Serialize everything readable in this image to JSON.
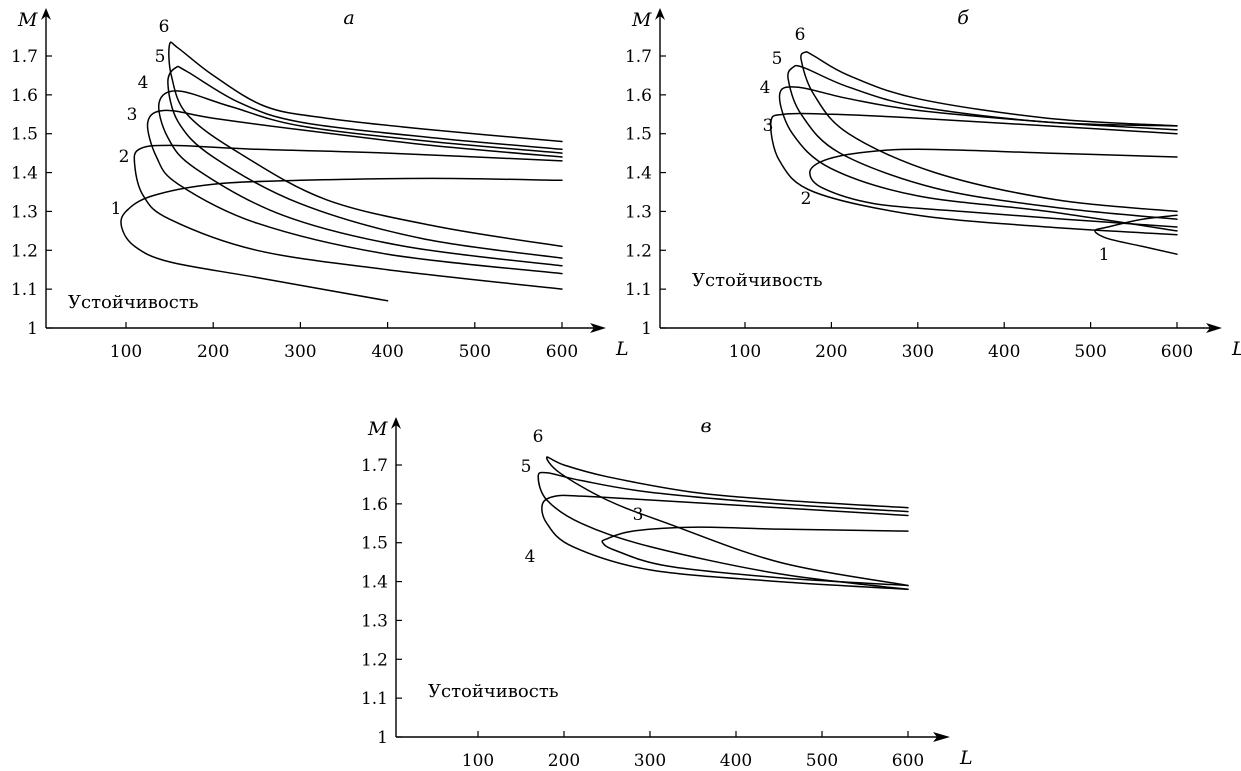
{
  "chart_data": [
    {
      "type": "line",
      "panel": "а",
      "xlabel": "L",
      "ylabel": "M",
      "xlim": [
        0,
        650
      ],
      "ylim": [
        1.0,
        1.8
      ],
      "xticks": [
        "100",
        "200",
        "300",
        "400",
        "500",
        "600"
      ],
      "yticks": [
        "1",
        "1.1",
        "1.2",
        "1.3",
        "1.4",
        "1.5",
        "1.6",
        "1.7"
      ],
      "region_label": "Устойчивость",
      "series": [
        {
          "name": "1",
          "upper": [
            [
              600,
              1.38
            ],
            [
              450,
              1.385
            ],
            [
              300,
              1.38
            ],
            [
              200,
              1.37
            ],
            [
              130,
              1.34
            ],
            [
              100,
              1.3
            ],
            [
              95,
              1.26
            ]
          ],
          "lower": [
            [
              95,
              1.26
            ],
            [
              110,
              1.21
            ],
            [
              150,
              1.17
            ],
            [
              250,
              1.13
            ],
            [
              400,
              1.07
            ]
          ]
        },
        {
          "name": "2",
          "upper": [
            [
              600,
              1.43
            ],
            [
              400,
              1.45
            ],
            [
              250,
              1.46
            ],
            [
              150,
              1.47
            ],
            [
              115,
              1.46
            ],
            [
              110,
              1.42
            ]
          ],
          "lower": [
            [
              110,
              1.42
            ],
            [
              120,
              1.34
            ],
            [
              150,
              1.28
            ],
            [
              250,
              1.2
            ],
            [
              400,
              1.15
            ],
            [
              600,
              1.1
            ]
          ]
        },
        {
          "name": "3",
          "upper": [
            [
              600,
              1.44
            ],
            [
              450,
              1.47
            ],
            [
              300,
              1.51
            ],
            [
              200,
              1.54
            ],
            [
              145,
              1.56
            ],
            [
              125,
              1.53
            ]
          ],
          "lower": [
            [
              125,
              1.53
            ],
            [
              135,
              1.44
            ],
            [
              160,
              1.37
            ],
            [
              250,
              1.27
            ],
            [
              400,
              1.19
            ],
            [
              600,
              1.14
            ]
          ]
        },
        {
          "name": "4",
          "upper": [
            [
              600,
              1.45
            ],
            [
              450,
              1.48
            ],
            [
              300,
              1.52
            ],
            [
              220,
              1.57
            ],
            [
              160,
              1.61
            ],
            [
              138,
              1.58
            ]
          ],
          "lower": [
            [
              138,
              1.58
            ],
            [
              148,
              1.49
            ],
            [
              180,
              1.41
            ],
            [
              280,
              1.29
            ],
            [
              420,
              1.21
            ],
            [
              600,
              1.16
            ]
          ]
        },
        {
          "name": "5",
          "upper": [
            [
              600,
              1.46
            ],
            [
              450,
              1.49
            ],
            [
              300,
              1.53
            ],
            [
              230,
              1.58
            ],
            [
              170,
              1.66
            ],
            [
              157,
              1.67
            ],
            [
              148,
              1.63
            ]
          ],
          "lower": [
            [
              148,
              1.63
            ],
            [
              160,
              1.53
            ],
            [
              200,
              1.44
            ],
            [
              300,
              1.32
            ],
            [
              440,
              1.23
            ],
            [
              600,
              1.18
            ]
          ]
        },
        {
          "name": "6",
          "upper": [
            [
              600,
              1.48
            ],
            [
              450,
              1.51
            ],
            [
              330,
              1.54
            ],
            [
              260,
              1.57
            ],
            [
              200,
              1.65
            ],
            [
              160,
              1.72
            ],
            [
              150,
              1.73
            ]
          ],
          "lower": [
            [
              150,
              1.73
            ],
            [
              152,
              1.65
            ],
            [
              170,
              1.55
            ],
            [
              230,
              1.45
            ],
            [
              330,
              1.33
            ],
            [
              460,
              1.26
            ],
            [
              600,
              1.21
            ]
          ]
        }
      ]
    },
    {
      "type": "line",
      "panel": "б",
      "xlabel": "L",
      "ylabel": "M",
      "xlim": [
        0,
        650
      ],
      "ylim": [
        1.0,
        1.8
      ],
      "xticks": [
        "100",
        "200",
        "300",
        "400",
        "500",
        "600"
      ],
      "yticks": [
        "1",
        "1.1",
        "1.2",
        "1.3",
        "1.4",
        "1.5",
        "1.6",
        "1.7"
      ],
      "region_label": "Устойчивость",
      "series": [
        {
          "name": "1",
          "upper": [
            [
              600,
              1.29
            ],
            [
              560,
              1.28
            ],
            [
              520,
              1.26
            ],
            [
              505,
              1.25
            ]
          ],
          "lower": [
            [
              505,
              1.25
            ],
            [
              520,
              1.23
            ],
            [
              560,
              1.21
            ],
            [
              600,
              1.19
            ]
          ]
        },
        {
          "name": "2",
          "upper": [
            [
              600,
              1.44
            ],
            [
              450,
              1.45
            ],
            [
              300,
              1.46
            ],
            [
              230,
              1.45
            ],
            [
              190,
              1.43
            ],
            [
              175,
              1.4
            ]
          ],
          "lower": [
            [
              175,
              1.4
            ],
            [
              190,
              1.36
            ],
            [
              250,
              1.32
            ],
            [
              350,
              1.3
            ],
            [
              470,
              1.28
            ],
            [
              600,
              1.26
            ]
          ]
        },
        {
          "name": "3",
          "upper": [
            [
              600,
              1.5
            ],
            [
              450,
              1.52
            ],
            [
              300,
              1.54
            ],
            [
              200,
              1.55
            ],
            [
              145,
              1.55
            ],
            [
              130,
              1.53
            ]
          ],
          "lower": [
            [
              130,
              1.53
            ],
            [
              140,
              1.43
            ],
            [
              180,
              1.35
            ],
            [
              300,
              1.29
            ],
            [
              450,
              1.26
            ],
            [
              600,
              1.24
            ]
          ]
        },
        {
          "name": "4",
          "upper": [
            [
              600,
              1.51
            ],
            [
              450,
              1.53
            ],
            [
              300,
              1.56
            ],
            [
              220,
              1.59
            ],
            [
              160,
              1.62
            ],
            [
              140,
              1.6
            ]
          ],
          "lower": [
            [
              140,
              1.6
            ],
            [
              155,
              1.5
            ],
            [
              200,
              1.41
            ],
            [
              300,
              1.34
            ],
            [
              450,
              1.3
            ],
            [
              600,
              1.25
            ]
          ]
        },
        {
          "name": "5",
          "upper": [
            [
              600,
              1.52
            ],
            [
              450,
              1.53
            ],
            [
              300,
              1.57
            ],
            [
              220,
              1.62
            ],
            [
              168,
              1.67
            ],
            [
              155,
              1.67
            ],
            [
              150,
              1.64
            ]
          ],
          "lower": [
            [
              150,
              1.64
            ],
            [
              165,
              1.55
            ],
            [
              210,
              1.45
            ],
            [
              320,
              1.36
            ],
            [
              460,
              1.31
            ],
            [
              600,
              1.28
            ]
          ]
        },
        {
          "name": "6",
          "upper": [
            [
              600,
              1.52
            ],
            [
              450,
              1.54
            ],
            [
              300,
              1.59
            ],
            [
              220,
              1.65
            ],
            [
              180,
              1.7
            ],
            [
              170,
              1.71
            ],
            [
              165,
              1.69
            ]
          ],
          "lower": [
            [
              165,
              1.69
            ],
            [
              180,
              1.6
            ],
            [
              220,
              1.5
            ],
            [
              320,
              1.4
            ],
            [
              460,
              1.33
            ],
            [
              600,
              1.3
            ]
          ]
        }
      ]
    },
    {
      "type": "line",
      "panel": "в",
      "xlabel": "L",
      "ylabel": "M",
      "xlim": [
        0,
        650
      ],
      "ylim": [
        1.0,
        1.8
      ],
      "xticks": [
        "100",
        "200",
        "300",
        "400",
        "500",
        "600"
      ],
      "yticks": [
        "1",
        "1.1",
        "1.2",
        "1.3",
        "1.4",
        "1.5",
        "1.6",
        "1.7"
      ],
      "region_label": "Устойчивость",
      "series": [
        {
          "name": "3",
          "upper": [
            [
              600,
              1.53
            ],
            [
              450,
              1.535
            ],
            [
              350,
              1.54
            ],
            [
              280,
              1.53
            ],
            [
              250,
              1.51
            ],
            [
              245,
              1.5
            ]
          ],
          "lower": [
            [
              245,
              1.5
            ],
            [
              260,
              1.48
            ],
            [
              320,
              1.44
            ],
            [
              450,
              1.41
            ],
            [
              600,
              1.39
            ]
          ]
        },
        {
          "name": "4",
          "upper": [
            [
              600,
              1.57
            ],
            [
              450,
              1.59
            ],
            [
              300,
              1.61
            ],
            [
              220,
              1.62
            ],
            [
              190,
              1.62
            ],
            [
              175,
              1.6
            ]
          ],
          "lower": [
            [
              175,
              1.6
            ],
            [
              180,
              1.55
            ],
            [
              210,
              1.49
            ],
            [
              300,
              1.43
            ],
            [
              450,
              1.4
            ],
            [
              600,
              1.38
            ]
          ]
        },
        {
          "name": "5",
          "upper": [
            [
              600,
              1.58
            ],
            [
              450,
              1.6
            ],
            [
              300,
              1.63
            ],
            [
              220,
              1.66
            ],
            [
              180,
              1.68
            ],
            [
              170,
              1.67
            ]
          ],
          "lower": [
            [
              170,
              1.67
            ],
            [
              180,
              1.61
            ],
            [
              220,
              1.55
            ],
            [
              300,
              1.49
            ],
            [
              450,
              1.42
            ],
            [
              600,
              1.38
            ]
          ]
        },
        {
          "name": "6",
          "upper": [
            [
              600,
              1.59
            ],
            [
              450,
              1.61
            ],
            [
              350,
              1.63
            ],
            [
              250,
              1.67
            ],
            [
              200,
              1.7
            ],
            [
              180,
              1.72
            ]
          ],
          "lower": [
            [
              180,
              1.72
            ],
            [
              195,
              1.68
            ],
            [
              250,
              1.61
            ],
            [
              320,
              1.55
            ],
            [
              450,
              1.45
            ],
            [
              600,
              1.39
            ]
          ]
        }
      ]
    }
  ]
}
